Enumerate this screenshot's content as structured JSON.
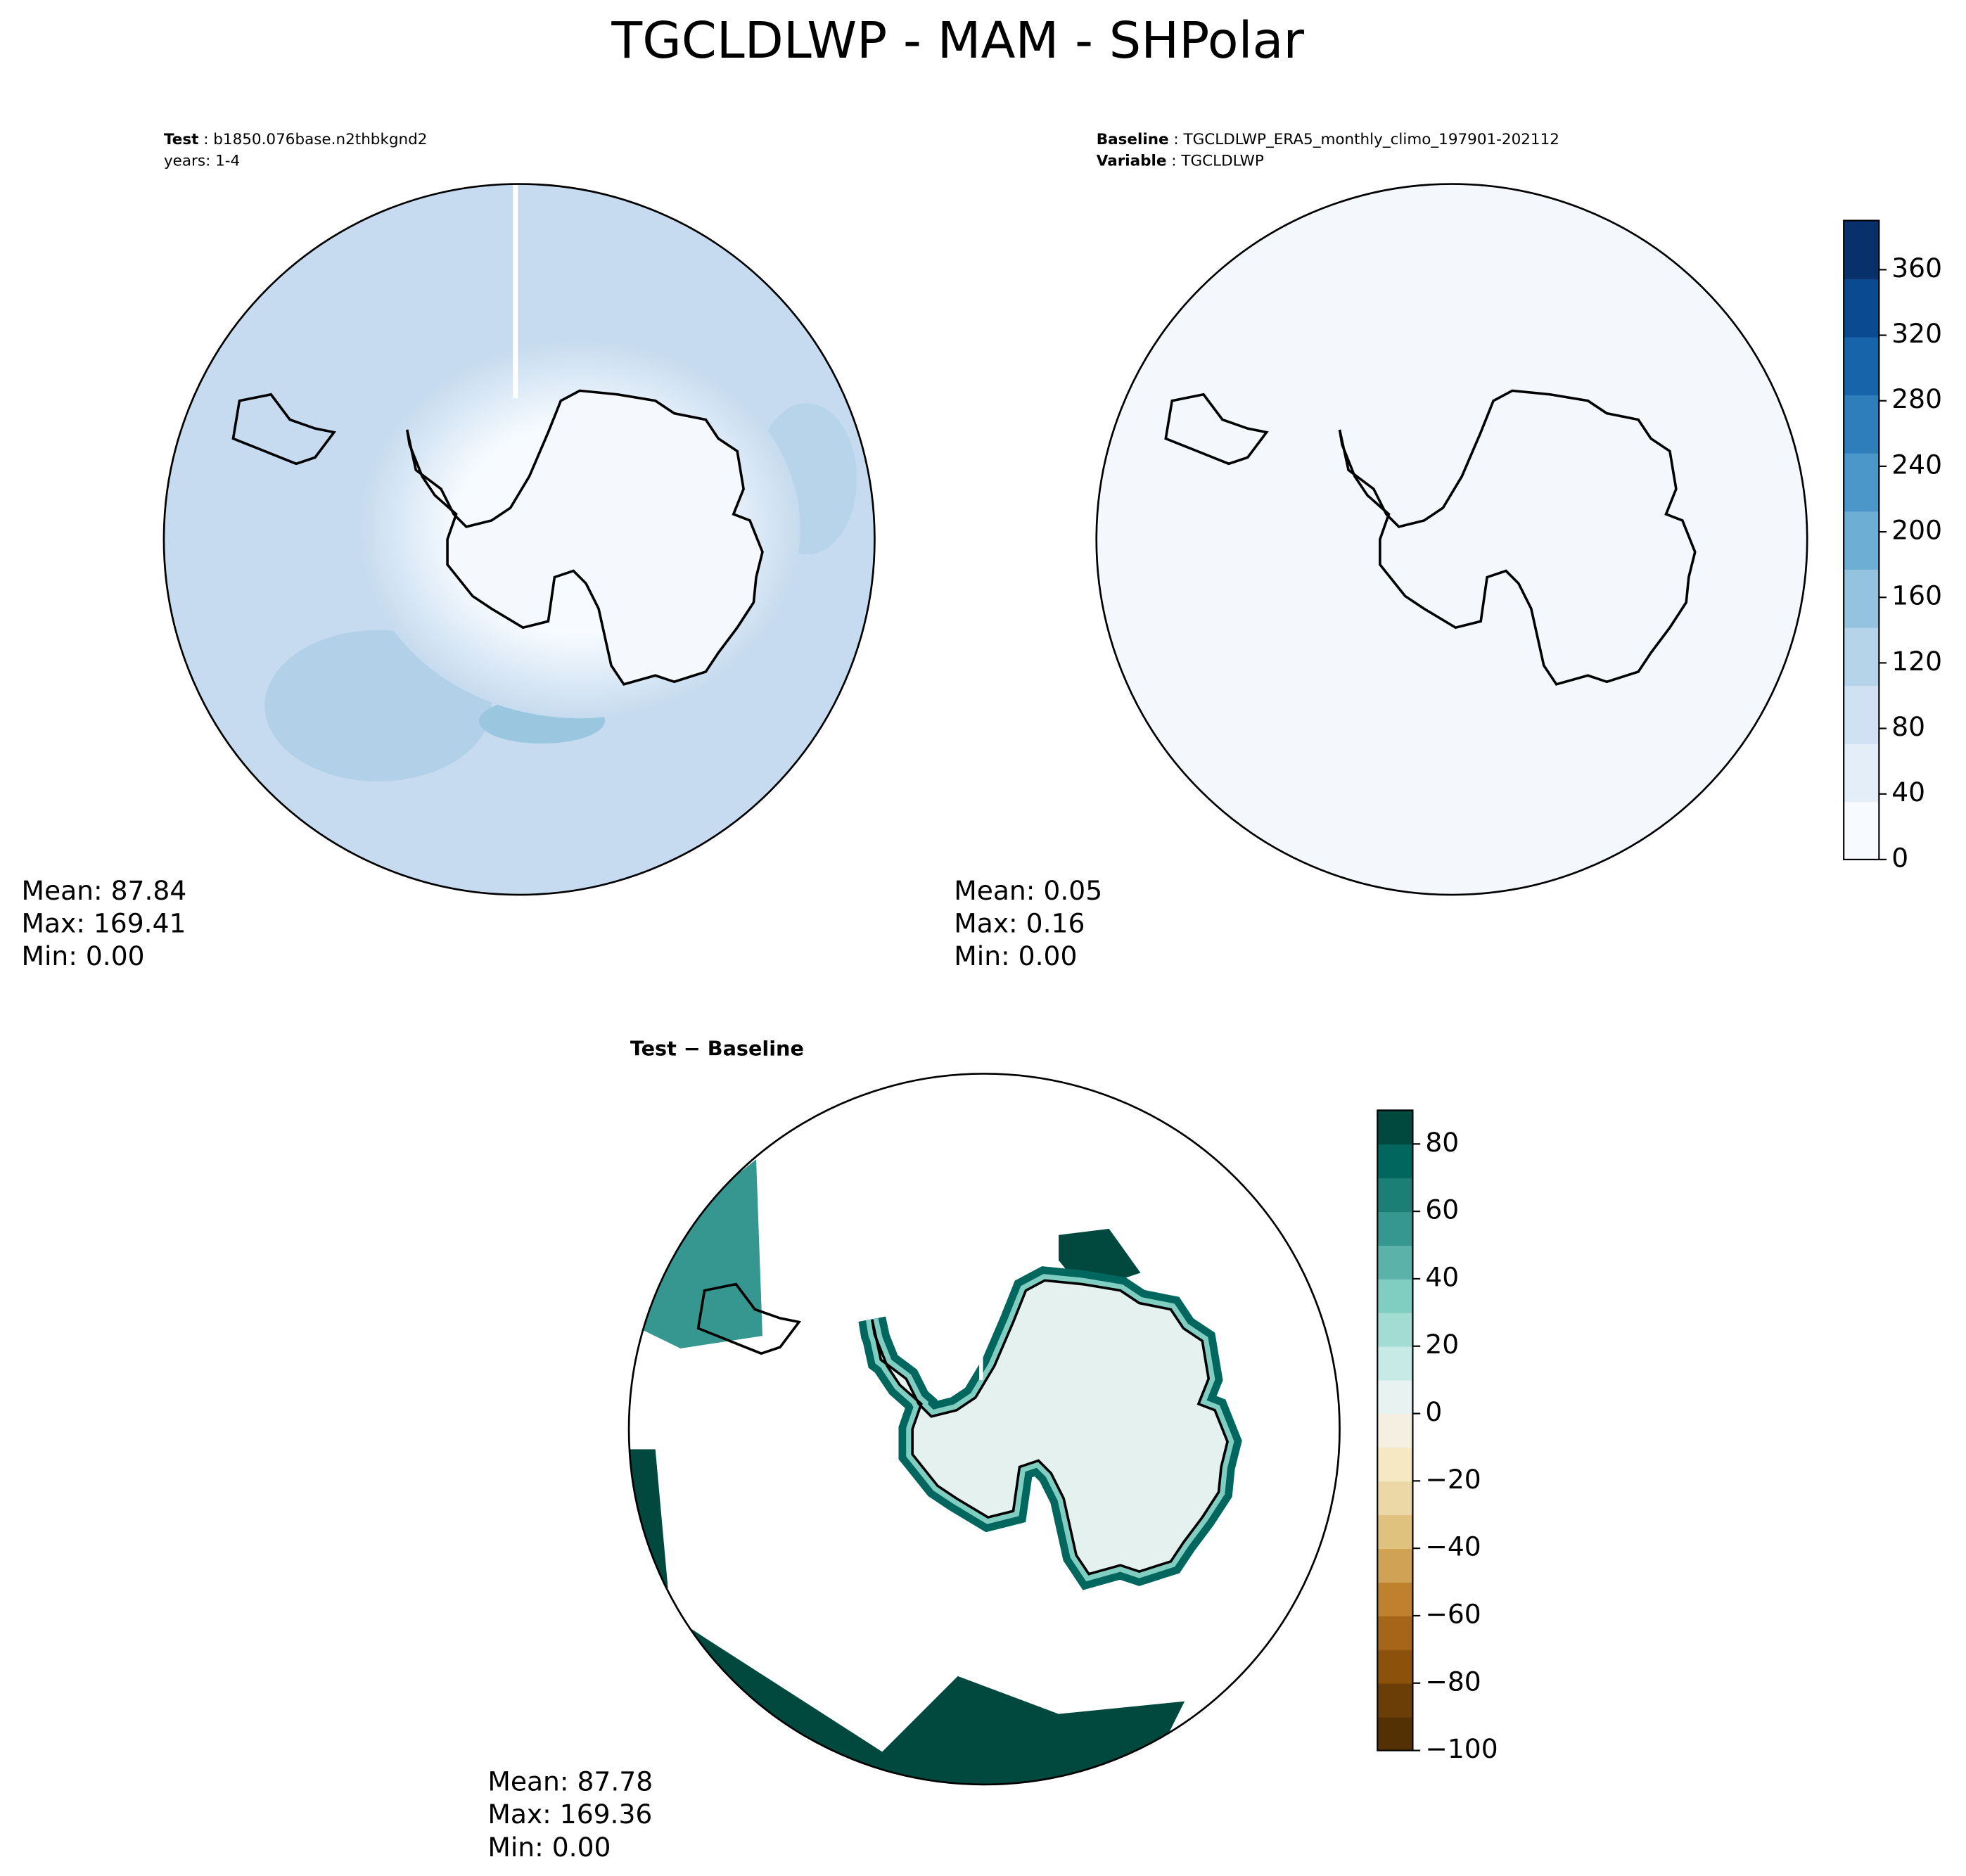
{
  "title": "TGCLDLWP - MAM - SHPolar",
  "panels": [
    {
      "key": "Test",
      "value": "b1850.076base.n2thbkgnd2",
      "line2": "years: 1-4",
      "stats": [
        "Mean: 87.84",
        "Max: 169.41",
        "Min:  0.00"
      ]
    },
    {
      "key": "Baseline",
      "value": "TGCLDLWP_ERA5_monthly_climo_197901-202112",
      "key2": "Variable",
      "value2": "TGCLDLWP",
      "stats": [
        "Mean:  0.05",
        "Max:  0.16",
        "Min:  0.00"
      ]
    },
    {
      "title": "Test − Baseline",
      "stats": [
        "Mean: 87.78",
        "Max: 169.36",
        "Min:  0.00"
      ]
    }
  ],
  "colorbars": [
    {
      "lim": [
        0,
        390
      ],
      "ticks": [
        0,
        40,
        80,
        120,
        160,
        200,
        240,
        280,
        320,
        360
      ],
      "colors": [
        "#f7fbff",
        "#e3eef9",
        "#cfe1f2",
        "#b5d4e9",
        "#93c3df",
        "#6daed5",
        "#4b97c9",
        "#2f7ebc",
        "#1864aa",
        "#0a4a90",
        "#08306b"
      ]
    },
    {
      "lim": [
        -100,
        90
      ],
      "ticks": [
        {
          "value": -100,
          "label": "−100"
        },
        {
          "value": -80,
          "label": "−80"
        },
        {
          "value": -60,
          "label": "−60"
        },
        {
          "value": -40,
          "label": "−40"
        },
        {
          "value": -20,
          "label": "−20"
        },
        0,
        20,
        40,
        60,
        80
      ],
      "colors": [
        "#543005",
        "#6b3d07",
        "#8c510a",
        "#a6661a",
        "#bf812d",
        "#cfa255",
        "#dfc27d",
        "#ebd8a6",
        "#f6e8c3",
        "#f5efe1",
        "#e8f2f0",
        "#c7eae5",
        "#a3dcd3",
        "#80cdc1",
        "#5ab2a8",
        "#35978f",
        "#1c7f76",
        "#01665e",
        "#01493f"
      ]
    }
  ]
}
